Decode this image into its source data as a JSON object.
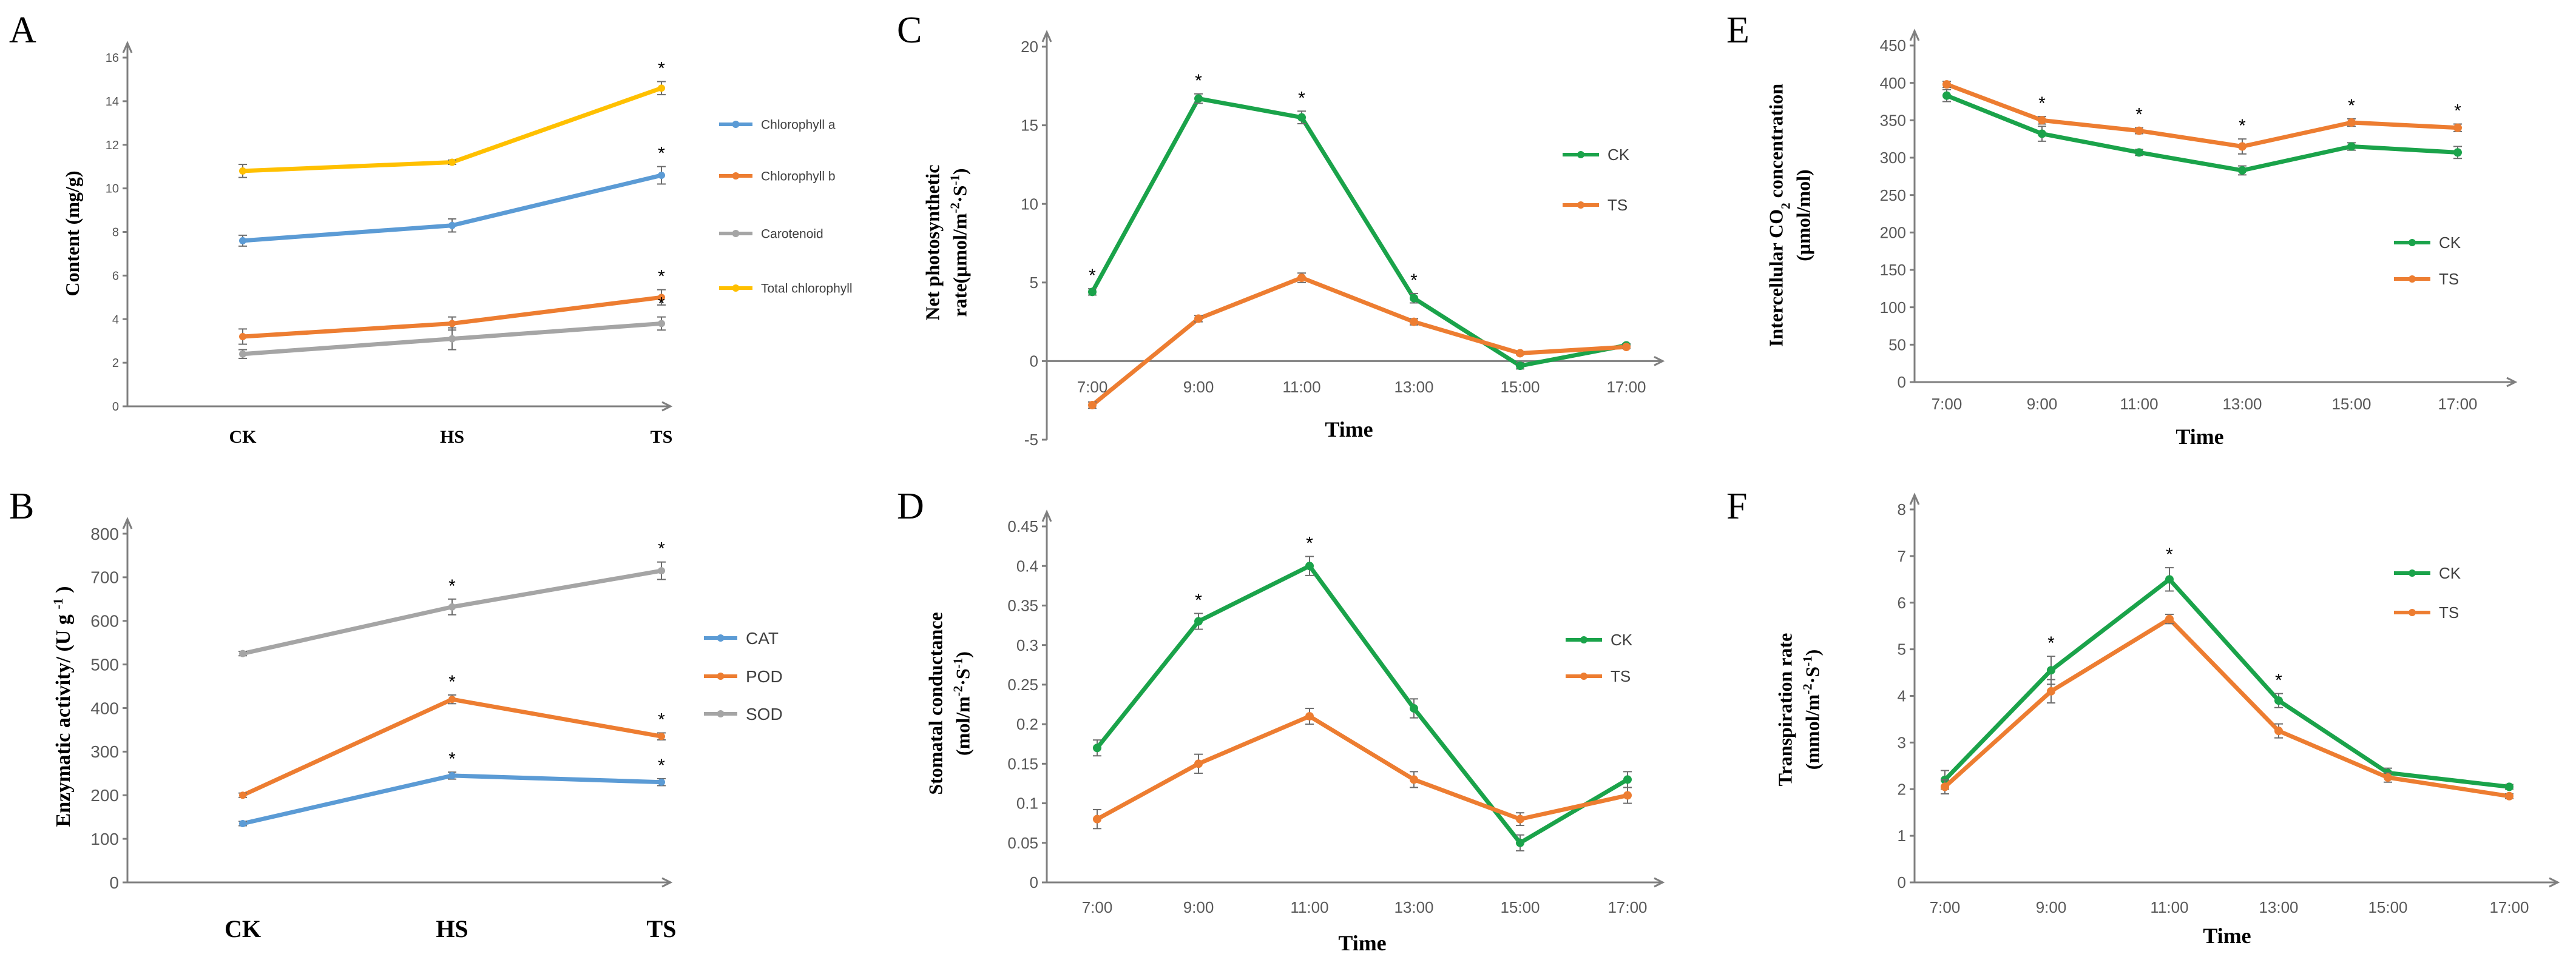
{
  "chart_data": [
    {
      "panel": "A",
      "type": "line",
      "categories": [
        "CK",
        "HS",
        "TS"
      ],
      "ylabel": "Content (mg/g)",
      "xlabel": "",
      "ylim": [
        0,
        16
      ],
      "yticks": [
        "0",
        "2",
        "4",
        "6",
        "8",
        "10",
        "12",
        "14",
        "16"
      ],
      "legend_position": "right",
      "series": [
        {
          "name": "Chlorophyll a",
          "color": "#5b9bd5",
          "values": [
            7.6,
            8.3,
            10.6
          ],
          "errors": [
            0.25,
            0.3,
            0.4
          ],
          "stars": [
            false,
            false,
            true
          ]
        },
        {
          "name": "Chlorophyll b",
          "color": "#ed7d31",
          "values": [
            3.2,
            3.8,
            5.0
          ],
          "errors": [
            0.35,
            0.3,
            0.35
          ],
          "stars": [
            false,
            false,
            true
          ]
        },
        {
          "name": "Carotenoid",
          "color": "#a5a5a5",
          "values": [
            2.4,
            3.1,
            3.8
          ],
          "errors": [
            0.2,
            0.5,
            0.3
          ],
          "stars": [
            false,
            false,
            true
          ]
        },
        {
          "name": "Total chlorophyll",
          "color": "#ffc000",
          "values": [
            10.8,
            11.2,
            14.6
          ],
          "errors": [
            0.3,
            0.1,
            0.3
          ],
          "stars": [
            false,
            false,
            true
          ]
        }
      ]
    },
    {
      "panel": "B",
      "type": "line",
      "categories": [
        "CK",
        "HS",
        "TS"
      ],
      "ylabel": "Enzymatic activity/ (U g -1 )",
      "xlabel": "",
      "ylim": [
        0,
        800
      ],
      "yticks": [
        "0",
        "100",
        "200",
        "300",
        "400",
        "500",
        "600",
        "700",
        "800"
      ],
      "legend_position": "right",
      "series": [
        {
          "name": "CAT",
          "color": "#5b9bd5",
          "values": [
            135,
            245,
            230
          ],
          "errors": [
            5,
            8,
            8
          ],
          "stars": [
            false,
            true,
            true
          ]
        },
        {
          "name": "POD",
          "color": "#ed7d31",
          "values": [
            200,
            420,
            335
          ],
          "errors": [
            5,
            10,
            8
          ],
          "stars": [
            false,
            true,
            true
          ]
        },
        {
          "name": "SOD",
          "color": "#a5a5a5",
          "values": [
            525,
            632,
            715
          ],
          "errors": [
            5,
            18,
            20
          ],
          "stars": [
            false,
            true,
            true
          ]
        }
      ]
    },
    {
      "panel": "C",
      "type": "line",
      "categories": [
        "7:00",
        "9:00",
        "11:00",
        "13:00",
        "15:00",
        "17:00"
      ],
      "ylabel": "Net photosynthetic rate(μmol/m-2·S-1)",
      "xlabel": "Time",
      "ylim": [
        -5,
        20
      ],
      "yticks": [
        "-5",
        "0",
        "5",
        "10",
        "15",
        "20"
      ],
      "legend_position": "right",
      "series": [
        {
          "name": "CK",
          "color": "#1aa34a",
          "values": [
            4.4,
            16.7,
            15.5,
            4.0,
            -0.3,
            1.0
          ],
          "errors": [
            0.2,
            0.3,
            0.4,
            0.3,
            0.2,
            0.1
          ],
          "stars": [
            true,
            true,
            true,
            true,
            false,
            false
          ]
        },
        {
          "name": "TS",
          "color": "#ed7d31",
          "values": [
            -2.8,
            2.7,
            5.3,
            2.5,
            0.5,
            0.9
          ],
          "errors": [
            0.2,
            0.2,
            0.3,
            0.2,
            0.1,
            0.1
          ],
          "stars": [
            false,
            false,
            false,
            false,
            false,
            false
          ]
        }
      ]
    },
    {
      "panel": "D",
      "type": "line",
      "categories": [
        "7:00",
        "9:00",
        "11:00",
        "13:00",
        "15:00",
        "17:00"
      ],
      "ylabel": "Stomatal conductance (mol/m-2·S-1)",
      "xlabel": "Time",
      "ylim": [
        0,
        0.45
      ],
      "yticks": [
        "0",
        "0.05",
        "0.1",
        "0.15",
        "0.2",
        "0.25",
        "0.3",
        "0.35",
        "0.4",
        "0.45"
      ],
      "legend_position": "right",
      "series": [
        {
          "name": "CK",
          "color": "#1aa34a",
          "values": [
            0.17,
            0.33,
            0.4,
            0.22,
            0.05,
            0.13
          ],
          "errors": [
            0.01,
            0.01,
            0.012,
            0.012,
            0.01,
            0.01
          ],
          "stars": [
            false,
            true,
            true,
            false,
            false,
            false
          ]
        },
        {
          "name": "TS",
          "color": "#ed7d31",
          "values": [
            0.08,
            0.15,
            0.21,
            0.13,
            0.08,
            0.11
          ],
          "errors": [
            0.012,
            0.012,
            0.01,
            0.01,
            0.008,
            0.01
          ],
          "stars": [
            false,
            false,
            false,
            false,
            false,
            false
          ]
        }
      ]
    },
    {
      "panel": "E",
      "type": "line",
      "categories": [
        "7:00",
        "9:00",
        "11:00",
        "13:00",
        "15:00",
        "17:00"
      ],
      "ylabel": "Intercellular CO2 concentration (μmol/mol)",
      "xlabel": "Time",
      "ylim": [
        0,
        450
      ],
      "yticks": [
        "0",
        "50",
        "100",
        "150",
        "200",
        "250",
        "300",
        "350",
        "400",
        "450"
      ],
      "legend_position": "right",
      "series": [
        {
          "name": "CK",
          "color": "#1aa34a",
          "values": [
            383,
            332,
            307,
            283,
            315,
            307
          ],
          "errors": [
            8,
            10,
            4,
            6,
            5,
            8
          ],
          "stars": [
            false,
            false,
            false,
            false,
            false,
            false
          ]
        },
        {
          "name": "TS",
          "color": "#ed7d31",
          "values": [
            398,
            350,
            336,
            315,
            347,
            340
          ],
          "errors": [
            4,
            5,
            4,
            10,
            5,
            5
          ],
          "stars": [
            false,
            true,
            true,
            true,
            true,
            true
          ]
        }
      ]
    },
    {
      "panel": "F",
      "type": "line",
      "categories": [
        "7:00",
        "9:00",
        "11:00",
        "13:00",
        "15:00",
        "17:00"
      ],
      "ylabel": "Transpiration rate (mmol/m-2·S-1)",
      "xlabel": "Time",
      "ylim": [
        0,
        8
      ],
      "yticks": [
        "0",
        "1",
        "2",
        "3",
        "4",
        "5",
        "6",
        "7",
        "8"
      ],
      "legend_position": "right",
      "series": [
        {
          "name": "CK",
          "color": "#1aa34a",
          "values": [
            2.2,
            4.55,
            6.5,
            3.9,
            2.35,
            2.05
          ],
          "errors": [
            0.2,
            0.3,
            0.25,
            0.15,
            0.1,
            0.05
          ],
          "stars": [
            false,
            true,
            true,
            true,
            false,
            false
          ]
        },
        {
          "name": "TS",
          "color": "#ed7d31",
          "values": [
            2.05,
            4.1,
            5.65,
            3.25,
            2.25,
            1.85
          ],
          "errors": [
            0.15,
            0.25,
            0.1,
            0.15,
            0.1,
            0.05
          ],
          "stars": [
            false,
            false,
            false,
            false,
            false,
            false
          ]
        }
      ]
    }
  ]
}
